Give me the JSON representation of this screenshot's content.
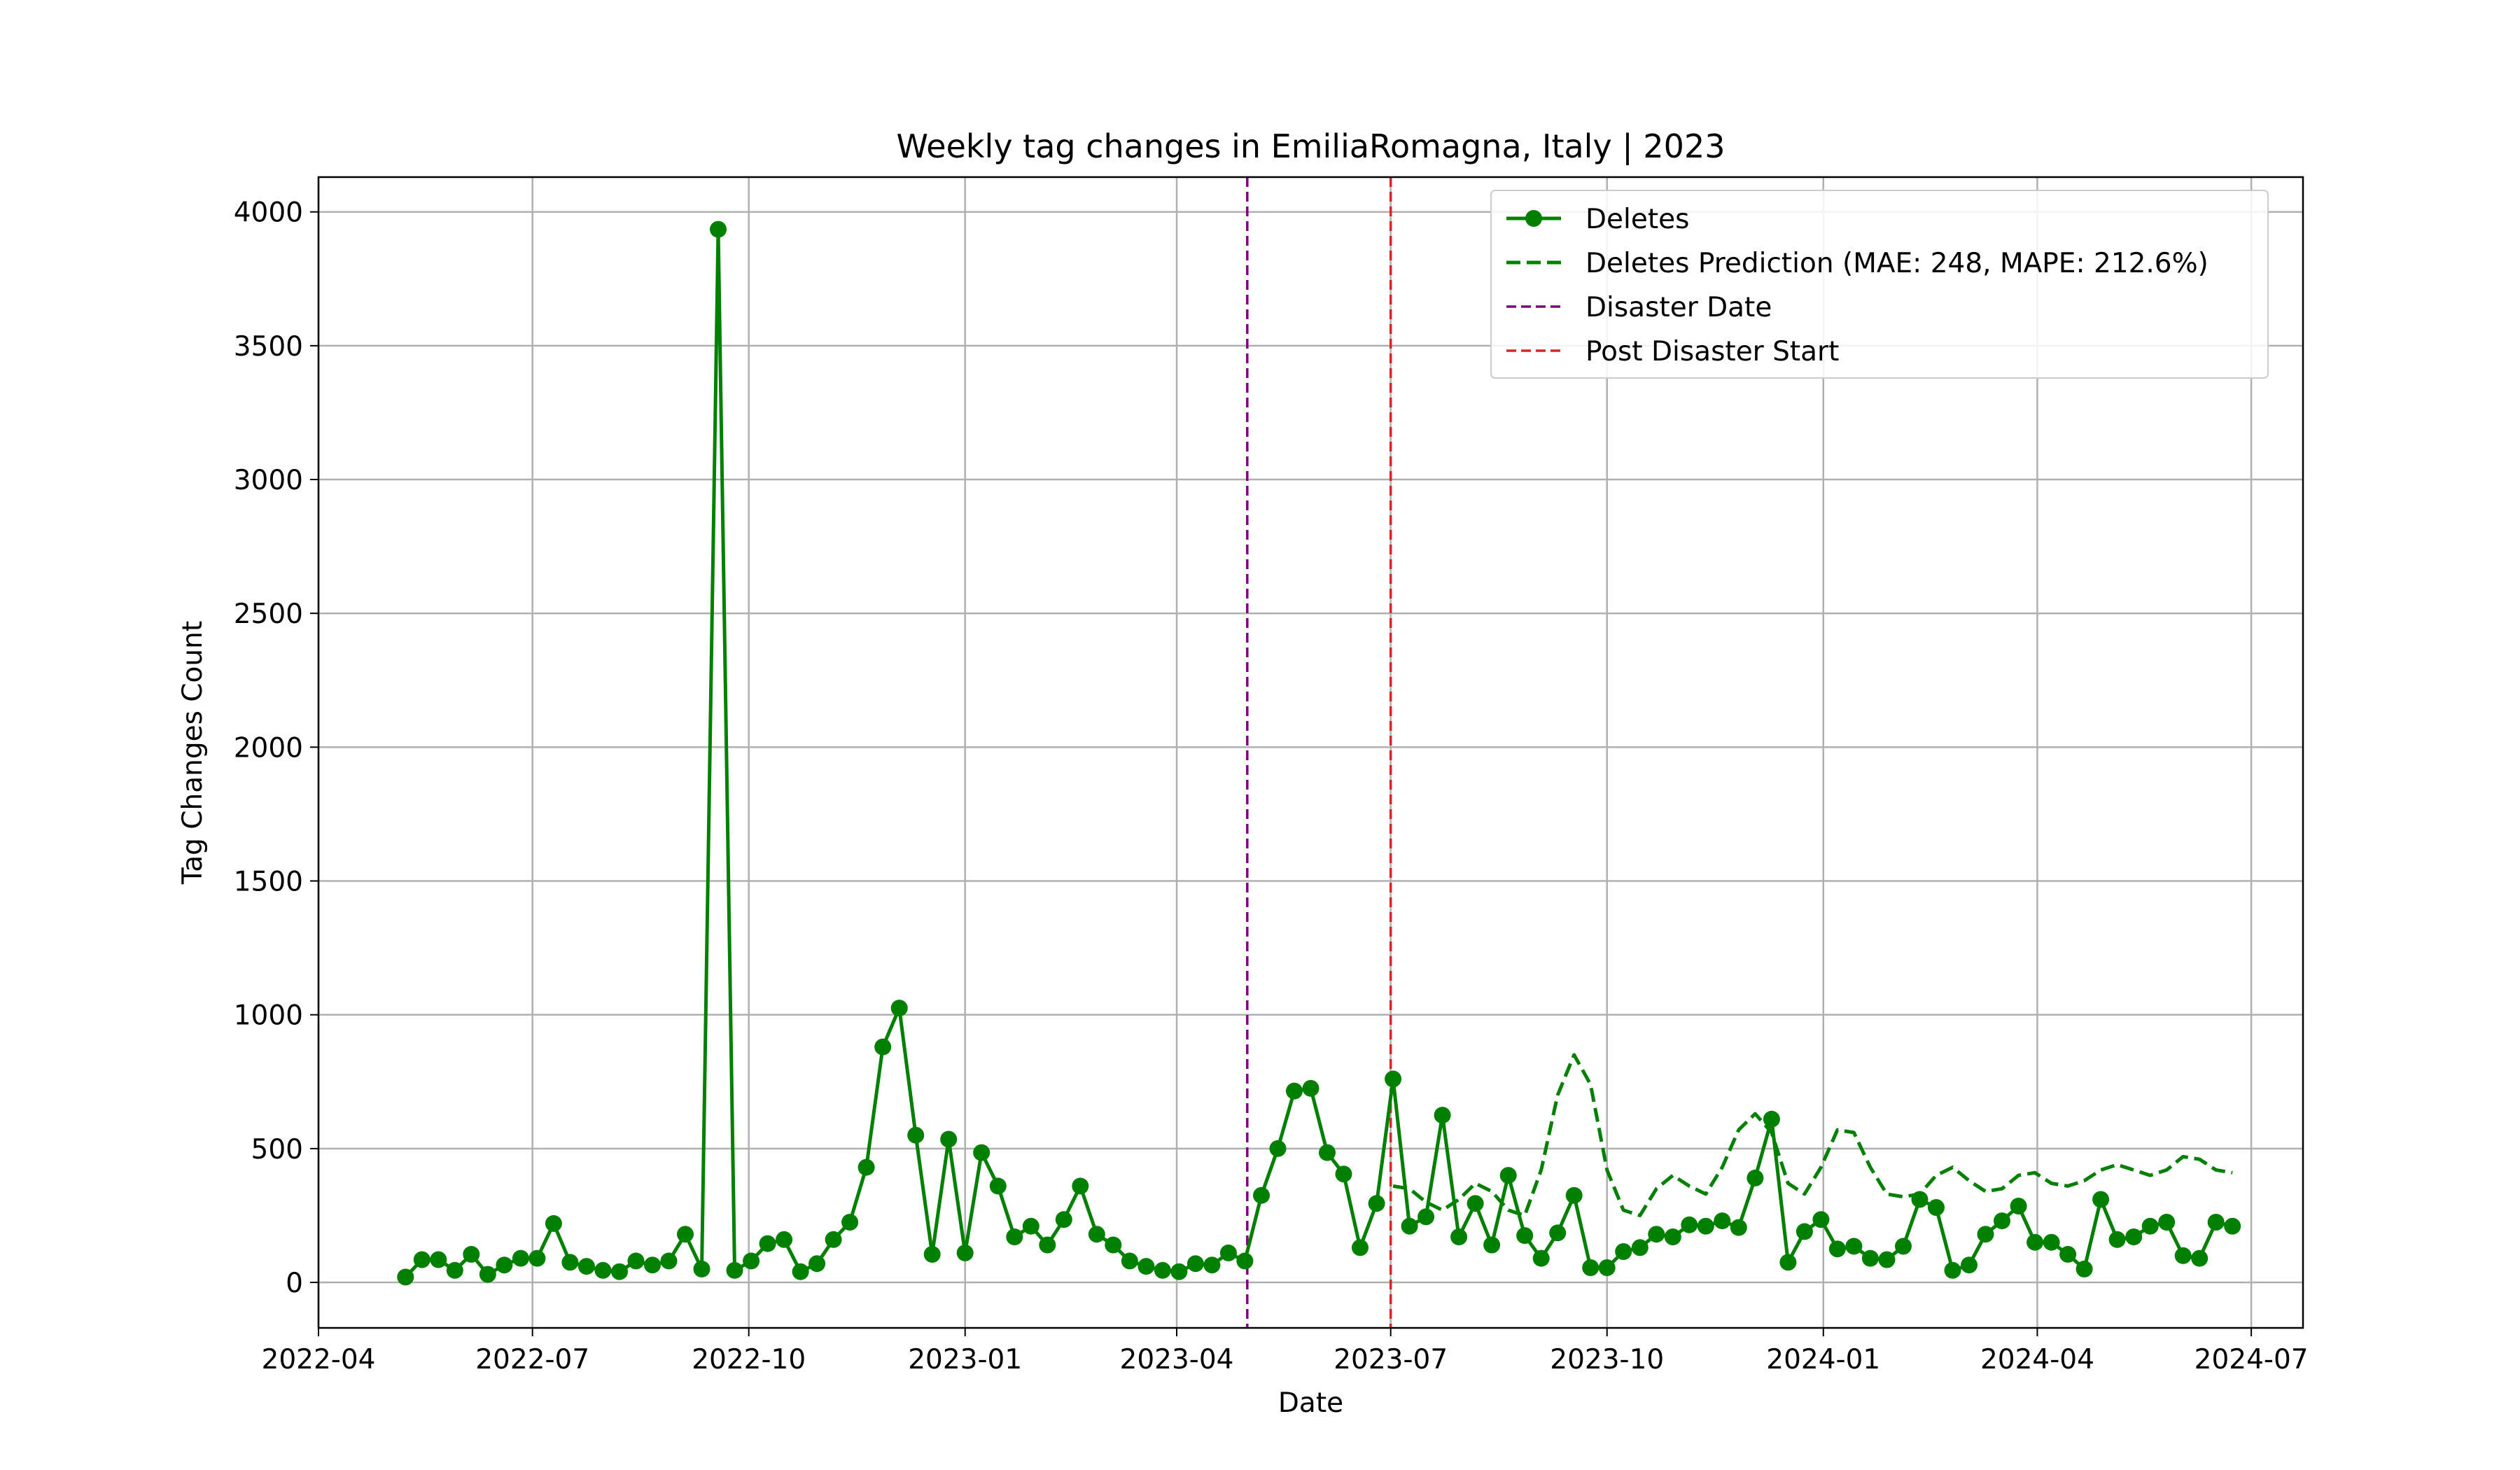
{
  "chart_data": {
    "type": "line",
    "title": "Weekly tag changes in EmiliaRomagna, Italy | 2023",
    "xlabel": "Date",
    "ylabel": "Tag Changes Count",
    "ylim": [
      -170,
      4130
    ],
    "xlim": [
      "2022-04-01",
      "2024-07-23"
    ],
    "grid": true,
    "legend_position": "top-right",
    "x_ticks": [
      "2022-04",
      "2022-07",
      "2022-10",
      "2023-01",
      "2023-04",
      "2023-07",
      "2023-10",
      "2024-01",
      "2024-04",
      "2024-07"
    ],
    "y_ticks": [
      "0",
      "500",
      "1000",
      "1500",
      "2000",
      "2500",
      "3000",
      "3500",
      "4000"
    ],
    "colors": {
      "deletes": "#008000",
      "disaster": "#800080",
      "post": "#d62728",
      "grid": "#b0b0b0"
    },
    "series": [
      {
        "name": "Deletes",
        "style": "solid-markers",
        "x": [
          "2022-05-08",
          "2022-05-15",
          "2022-05-22",
          "2022-05-29",
          "2022-06-05",
          "2022-06-12",
          "2022-06-19",
          "2022-06-26",
          "2022-07-03",
          "2022-07-10",
          "2022-07-17",
          "2022-07-24",
          "2022-07-31",
          "2022-08-07",
          "2022-08-14",
          "2022-08-21",
          "2022-08-28",
          "2022-09-04",
          "2022-09-11",
          "2022-09-18",
          "2022-09-25",
          "2022-10-02",
          "2022-10-09",
          "2022-10-16",
          "2022-10-23",
          "2022-10-30",
          "2022-11-06",
          "2022-11-13",
          "2022-11-20",
          "2022-11-27",
          "2022-12-04",
          "2022-12-11",
          "2022-12-18",
          "2022-12-25",
          "2023-01-01",
          "2023-01-08",
          "2023-01-15",
          "2023-01-22",
          "2023-01-29",
          "2023-02-05",
          "2023-02-12",
          "2023-02-19",
          "2023-02-26",
          "2023-03-05",
          "2023-03-12",
          "2023-03-19",
          "2023-03-26",
          "2023-04-02",
          "2023-04-09",
          "2023-04-16",
          "2023-04-23",
          "2023-04-30",
          "2023-05-07",
          "2023-05-14",
          "2023-05-21",
          "2023-05-28",
          "2023-06-04",
          "2023-06-11",
          "2023-06-18",
          "2023-06-25",
          "2023-07-02",
          "2023-07-09",
          "2023-07-16",
          "2023-07-23",
          "2023-07-30",
          "2023-08-06",
          "2023-08-13",
          "2023-08-20",
          "2023-08-27",
          "2023-09-03",
          "2023-09-10",
          "2023-09-17",
          "2023-09-24",
          "2023-10-01",
          "2023-10-08",
          "2023-10-15",
          "2023-10-22",
          "2023-10-29",
          "2023-11-05",
          "2023-11-12",
          "2023-11-19",
          "2023-11-26",
          "2023-12-03",
          "2023-12-10",
          "2023-12-17",
          "2023-12-24",
          "2023-12-31",
          "2024-01-07",
          "2024-01-14",
          "2024-01-21",
          "2024-01-28",
          "2024-02-04",
          "2024-02-11",
          "2024-02-18",
          "2024-02-25",
          "2024-03-03",
          "2024-03-10",
          "2024-03-17",
          "2024-03-24",
          "2024-03-31",
          "2024-04-07",
          "2024-04-14",
          "2024-04-21",
          "2024-04-28",
          "2024-05-05",
          "2024-05-12",
          "2024-05-19",
          "2024-05-26",
          "2024-06-02",
          "2024-06-09",
          "2024-06-16",
          "2024-06-23"
        ],
        "values": [
          20,
          85,
          85,
          45,
          105,
          30,
          65,
          90,
          90,
          220,
          75,
          60,
          45,
          40,
          80,
          65,
          80,
          180,
          50,
          3935,
          45,
          80,
          145,
          160,
          40,
          70,
          160,
          225,
          430,
          880,
          1025,
          550,
          105,
          535,
          110,
          485,
          360,
          170,
          210,
          140,
          235,
          360,
          180,
          140,
          80,
          60,
          45,
          40,
          70,
          65,
          110,
          80,
          325,
          500,
          715,
          725,
          485,
          405,
          130,
          295,
          760,
          210,
          245,
          625,
          170,
          295,
          140,
          400,
          175,
          90,
          185,
          325,
          55,
          55,
          115,
          130,
          180,
          170,
          215,
          210,
          230,
          205,
          390,
          610,
          75,
          190,
          235,
          125,
          135,
          90,
          85,
          135,
          310,
          280,
          45,
          65,
          180,
          230,
          285,
          150,
          150,
          105,
          50,
          310,
          160,
          170,
          210,
          225,
          100,
          90,
          225,
          210
        ]
      },
      {
        "name": "Deletes Prediction (MAE: 248, MAPE: 212.6%)",
        "style": "dashed",
        "x": [
          "2023-07-02",
          "2023-07-09",
          "2023-07-16",
          "2023-07-23",
          "2023-07-30",
          "2023-08-06",
          "2023-08-13",
          "2023-08-20",
          "2023-08-27",
          "2023-09-03",
          "2023-09-10",
          "2023-09-17",
          "2023-09-24",
          "2023-10-01",
          "2023-10-08",
          "2023-10-15",
          "2023-10-22",
          "2023-10-29",
          "2023-11-05",
          "2023-11-12",
          "2023-11-19",
          "2023-11-26",
          "2023-12-03",
          "2023-12-10",
          "2023-12-17",
          "2023-12-24",
          "2023-12-31",
          "2024-01-07",
          "2024-01-14",
          "2024-01-21",
          "2024-01-28",
          "2024-02-04",
          "2024-02-11",
          "2024-02-18",
          "2024-02-25",
          "2024-03-03",
          "2024-03-10",
          "2024-03-17",
          "2024-03-24",
          "2024-03-31",
          "2024-04-07",
          "2024-04-14",
          "2024-04-21",
          "2024-04-28",
          "2024-05-05",
          "2024-05-12",
          "2024-05-19",
          "2024-05-26",
          "2024-06-02",
          "2024-06-09",
          "2024-06-16",
          "2024-06-23"
        ],
        "values": [
          360,
          350,
          300,
          270,
          310,
          370,
          340,
          270,
          250,
          420,
          700,
          850,
          740,
          420,
          270,
          250,
          350,
          400,
          360,
          330,
          430,
          570,
          630,
          560,
          370,
          330,
          430,
          570,
          560,
          430,
          330,
          320,
          330,
          400,
          430,
          380,
          340,
          350,
          400,
          410,
          370,
          360,
          380,
          420,
          440,
          420,
          400,
          420,
          470,
          460,
          420,
          410
        ]
      }
    ],
    "vlines": [
      {
        "name": "Disaster Date",
        "x": "2023-05-01"
      },
      {
        "name": "Post Disaster Start",
        "x": "2023-07-01"
      }
    ]
  }
}
